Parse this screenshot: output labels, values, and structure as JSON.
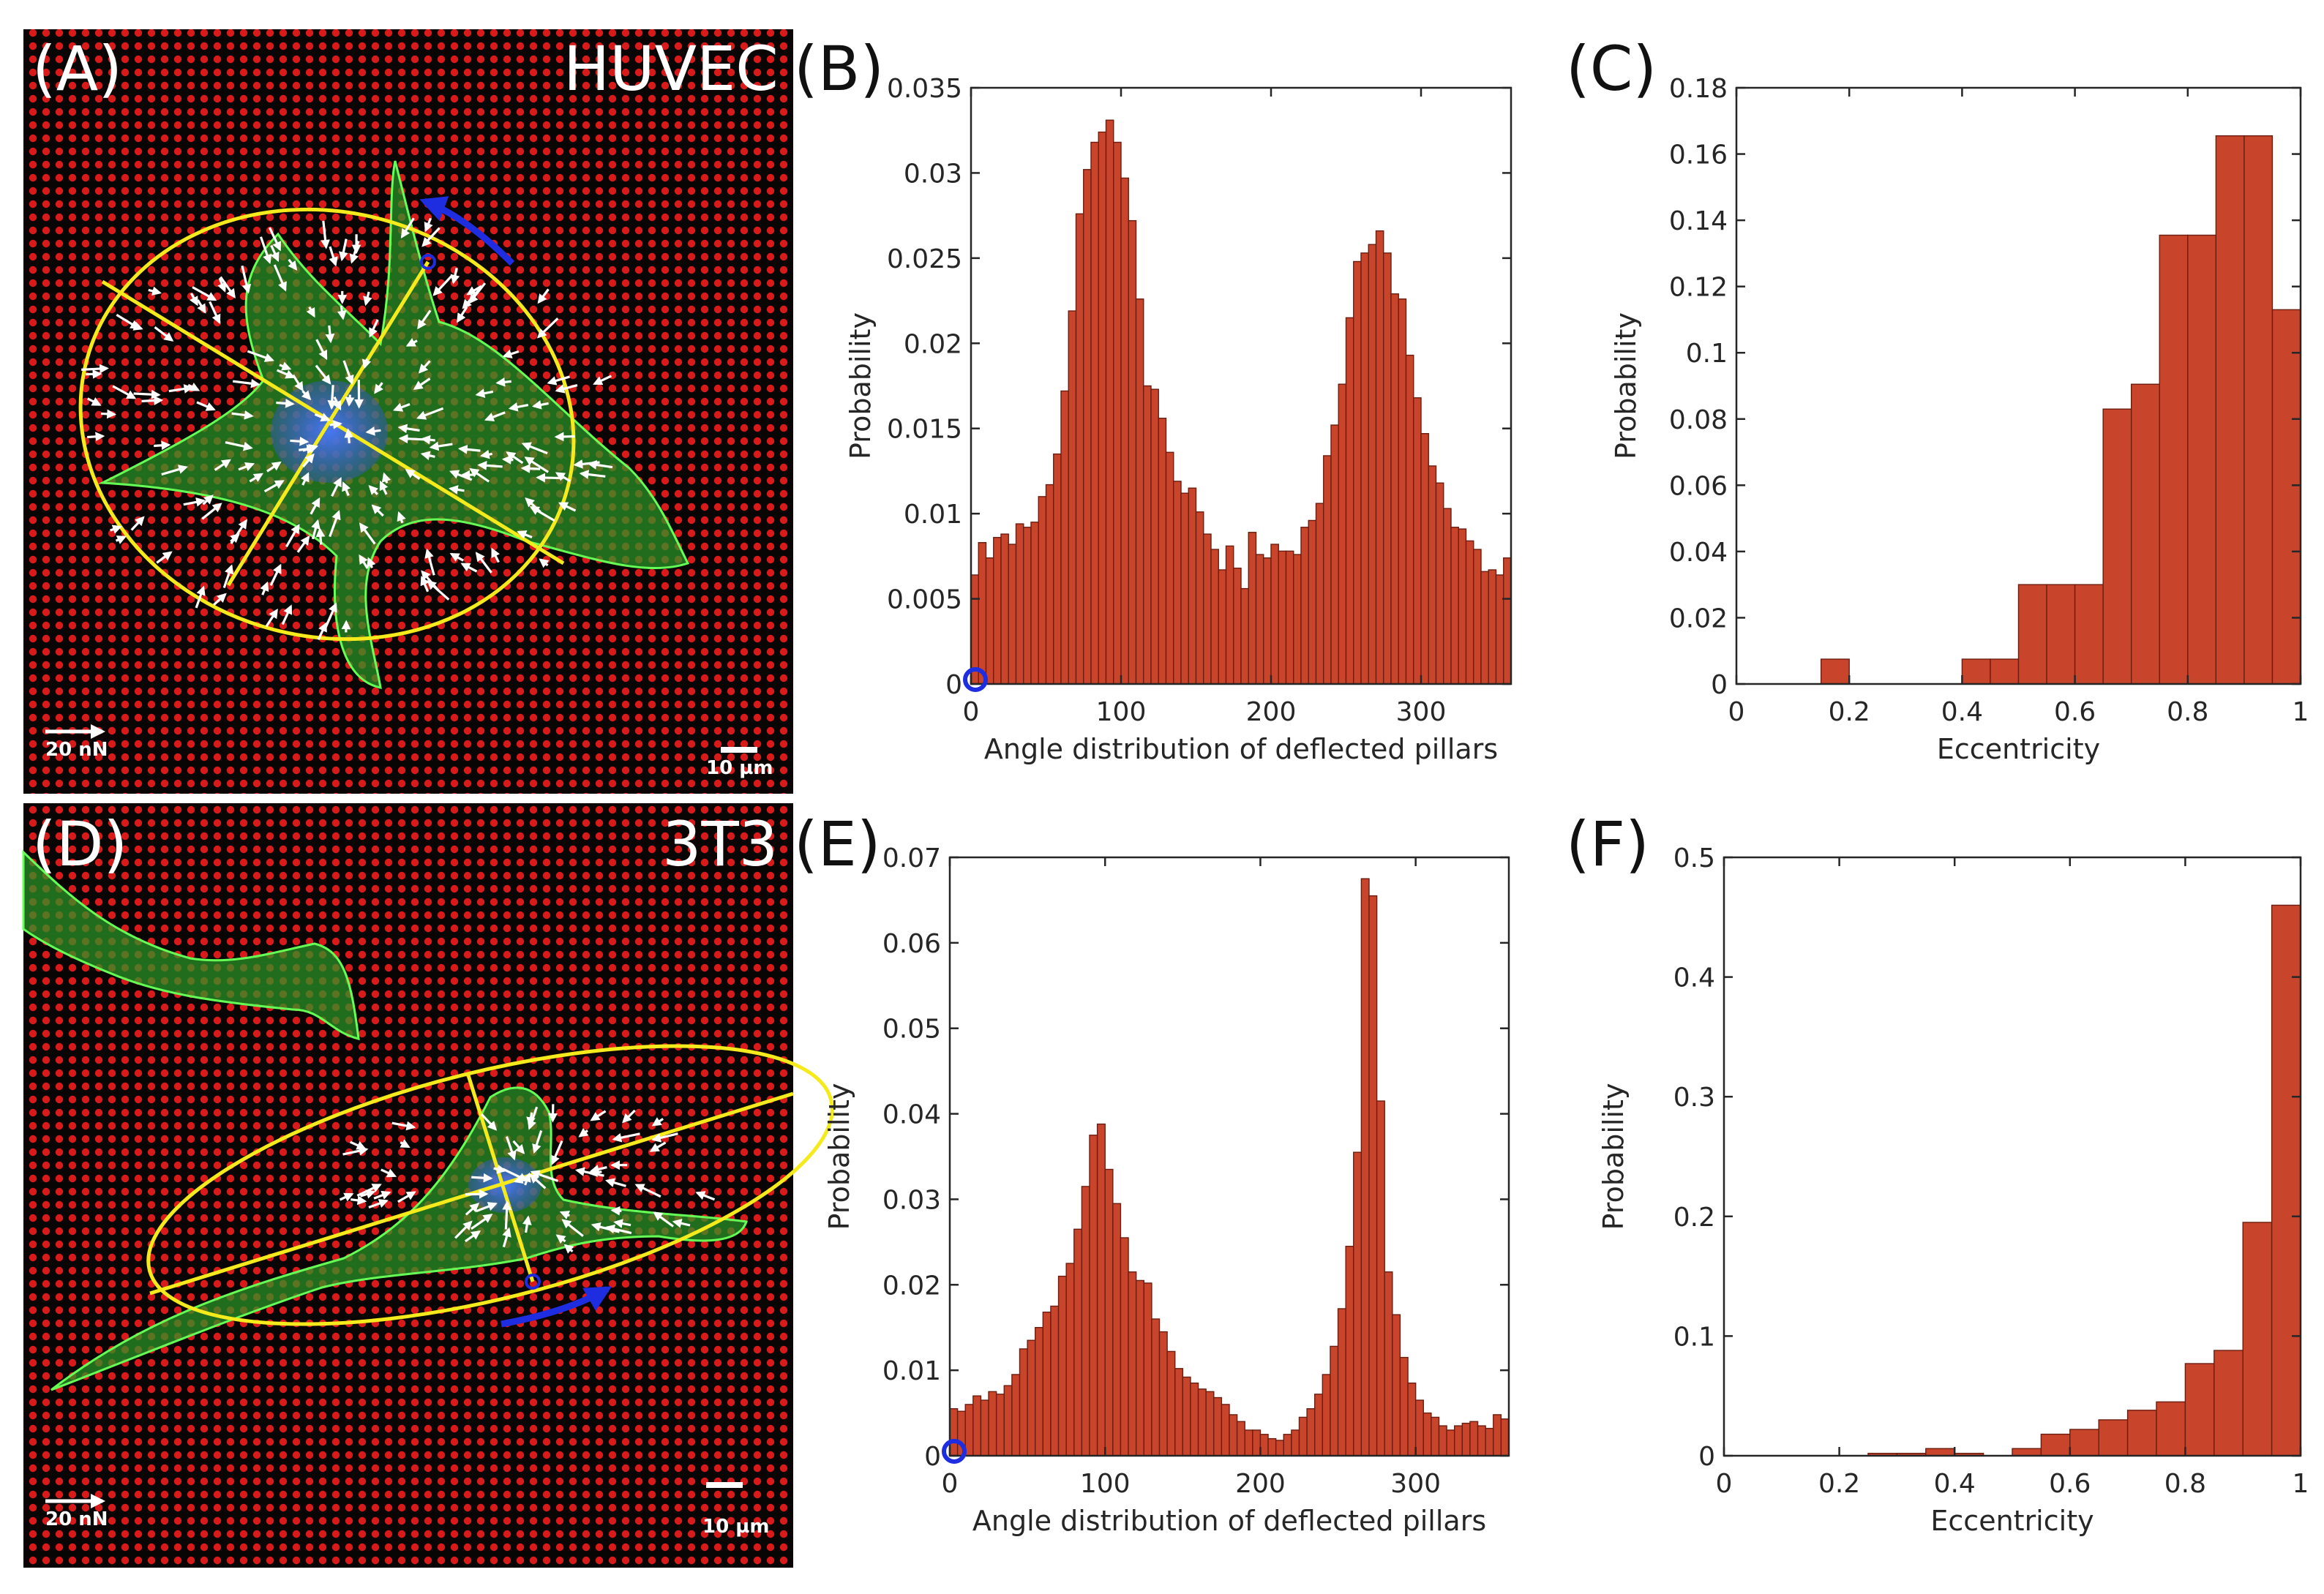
{
  "figure": {
    "panel_labels": [
      "(A)",
      "(B)",
      "(C)",
      "(D)",
      "(E)",
      "(F)"
    ],
    "images": [
      {
        "cell_type": "HUVEC",
        "force_scale": "20 nN",
        "length_scale": "10 µm"
      },
      {
        "cell_type": "3T3",
        "force_scale": "20 nN",
        "length_scale": "10 µm"
      }
    ],
    "colors": {
      "bar": "#c8452c",
      "bar_edge": "#6b1d10",
      "marker": "#1f2de0",
      "ellipse": "#f5ea1c",
      "actin": "#3ddc3a",
      "pillar": "#d81a1a",
      "vector": "#ffffff"
    }
  },
  "chart_data": [
    {
      "id": "B",
      "type": "bar",
      "title": "",
      "xlabel": "Angle distribution of deflected pillars",
      "ylabel": "Probability",
      "xlim": [
        0,
        360
      ],
      "ylim": [
        0,
        0.035
      ],
      "xticks": [
        0,
        100,
        200,
        300
      ],
      "yticks": [
        0,
        0.005,
        0.01,
        0.015,
        0.02,
        0.025,
        0.03,
        0.035
      ],
      "ytick_labels": [
        "0",
        "0.005",
        "0.01",
        "0.015",
        "0.02",
        "0.025",
        "0.03",
        "0.035"
      ],
      "bin_width": 5,
      "x": [
        2.5,
        7.5,
        12.5,
        17.5,
        22.5,
        27.5,
        32.5,
        37.5,
        42.5,
        47.5,
        52.5,
        57.5,
        62.5,
        67.5,
        72.5,
        77.5,
        82.5,
        87.5,
        92.5,
        97.5,
        102.5,
        107.5,
        112.5,
        117.5,
        122.5,
        127.5,
        132.5,
        137.5,
        142.5,
        147.5,
        152.5,
        157.5,
        162.5,
        167.5,
        172.5,
        177.5,
        182.5,
        187.5,
        192.5,
        197.5,
        202.5,
        207.5,
        212.5,
        217.5,
        222.5,
        227.5,
        232.5,
        237.5,
        242.5,
        247.5,
        252.5,
        257.5,
        262.5,
        267.5,
        272.5,
        277.5,
        282.5,
        287.5,
        292.5,
        297.5,
        302.5,
        307.5,
        312.5,
        317.5,
        322.5,
        327.5,
        332.5,
        337.5,
        342.5,
        347.5,
        352.5,
        357.5
      ],
      "values": [
        0.0064,
        0.0083,
        0.0074,
        0.0086,
        0.0088,
        0.0082,
        0.0094,
        0.0092,
        0.0095,
        0.011,
        0.0117,
        0.0135,
        0.0172,
        0.0219,
        0.0276,
        0.0302,
        0.0318,
        0.0324,
        0.0331,
        0.0318,
        0.0297,
        0.0272,
        0.0226,
        0.0175,
        0.0173,
        0.0156,
        0.0136,
        0.0119,
        0.0112,
        0.0115,
        0.0101,
        0.0088,
        0.0079,
        0.0067,
        0.0081,
        0.0068,
        0.0056,
        0.0089,
        0.0076,
        0.0074,
        0.0082,
        0.0078,
        0.0078,
        0.0076,
        0.0092,
        0.0096,
        0.0106,
        0.0134,
        0.0152,
        0.0176,
        0.0215,
        0.0248,
        0.0253,
        0.0258,
        0.0266,
        0.0253,
        0.0229,
        0.0226,
        0.0193,
        0.0168,
        0.0147,
        0.0128,
        0.0118,
        0.0103,
        0.0092,
        0.0091,
        0.0084,
        0.0079,
        0.0066,
        0.0067,
        0.0064,
        0.0074
      ],
      "annotation": "blue circle marker at origin"
    },
    {
      "id": "C",
      "type": "bar",
      "title": "",
      "xlabel": "Eccentricity",
      "ylabel": "Probability",
      "xlim": [
        0,
        1
      ],
      "ylim": [
        0,
        0.18
      ],
      "xticks": [
        0,
        0.2,
        0.4,
        0.6,
        0.8,
        1
      ],
      "xtick_labels": [
        "0",
        "0.2",
        "0.4",
        "0.6",
        "0.8",
        "1"
      ],
      "yticks": [
        0,
        0.02,
        0.04,
        0.06,
        0.08,
        0.1,
        0.12,
        0.14,
        0.16,
        0.18
      ],
      "ytick_labels": [
        "0",
        "0.02",
        "0.04",
        "0.06",
        "0.08",
        "0.1",
        "0.12",
        "0.14",
        "0.16",
        "0.18"
      ],
      "bin_width": 0.05,
      "x": [
        0.025,
        0.075,
        0.125,
        0.175,
        0.225,
        0.275,
        0.325,
        0.375,
        0.425,
        0.475,
        0.525,
        0.575,
        0.625,
        0.675,
        0.725,
        0.775,
        0.825,
        0.875,
        0.925,
        0.975
      ],
      "values": [
        0,
        0,
        0,
        0.0075,
        0,
        0,
        0,
        0,
        0.0075,
        0.0075,
        0.03,
        0.03,
        0.03,
        0.083,
        0.0905,
        0.1355,
        0.1355,
        0.1655,
        0.1655,
        0.113
      ]
    },
    {
      "id": "E",
      "type": "bar",
      "title": "",
      "xlabel": "Angle distribution of deflected pillars",
      "ylabel": "Probability",
      "xlim": [
        0,
        360
      ],
      "ylim": [
        0,
        0.07
      ],
      "xticks": [
        0,
        100,
        200,
        300
      ],
      "yticks": [
        0,
        0.01,
        0.02,
        0.03,
        0.04,
        0.05,
        0.06,
        0.07
      ],
      "ytick_labels": [
        "0",
        "0.01",
        "0.02",
        "0.03",
        "0.04",
        "0.05",
        "0.06",
        "0.07"
      ],
      "bin_width": 5,
      "x": [
        2.5,
        7.5,
        12.5,
        17.5,
        22.5,
        27.5,
        32.5,
        37.5,
        42.5,
        47.5,
        52.5,
        57.5,
        62.5,
        67.5,
        72.5,
        77.5,
        82.5,
        87.5,
        92.5,
        97.5,
        102.5,
        107.5,
        112.5,
        117.5,
        122.5,
        127.5,
        132.5,
        137.5,
        142.5,
        147.5,
        152.5,
        157.5,
        162.5,
        167.5,
        172.5,
        177.5,
        182.5,
        187.5,
        192.5,
        197.5,
        202.5,
        207.5,
        212.5,
        217.5,
        222.5,
        227.5,
        232.5,
        237.5,
        242.5,
        247.5,
        252.5,
        257.5,
        262.5,
        267.5,
        272.5,
        277.5,
        282.5,
        287.5,
        292.5,
        297.5,
        302.5,
        307.5,
        312.5,
        317.5,
        322.5,
        327.5,
        332.5,
        337.5,
        342.5,
        347.5,
        352.5,
        357.5
      ],
      "values": [
        0.0055,
        0.0052,
        0.006,
        0.007,
        0.0065,
        0.0075,
        0.0072,
        0.0082,
        0.0095,
        0.0125,
        0.0135,
        0.015,
        0.0168,
        0.0175,
        0.021,
        0.0225,
        0.0265,
        0.0315,
        0.0375,
        0.0388,
        0.0335,
        0.0295,
        0.0255,
        0.0215,
        0.0205,
        0.0202,
        0.016,
        0.0145,
        0.0122,
        0.0102,
        0.0092,
        0.0085,
        0.0078,
        0.0075,
        0.0068,
        0.006,
        0.0048,
        0.004,
        0.003,
        0.003,
        0.0025,
        0.002,
        0.0018,
        0.0025,
        0.003,
        0.0045,
        0.0055,
        0.0072,
        0.0095,
        0.0128,
        0.0172,
        0.0245,
        0.0355,
        0.0675,
        0.0655,
        0.0415,
        0.0215,
        0.0165,
        0.0115,
        0.0085,
        0.0065,
        0.005,
        0.0045,
        0.0035,
        0.003,
        0.0035,
        0.0038,
        0.004,
        0.0035,
        0.0032,
        0.0048,
        0.0043
      ],
      "annotation": "blue circle marker at origin"
    },
    {
      "id": "F",
      "type": "bar",
      "title": "",
      "xlabel": "Eccentricity",
      "ylabel": "Probability",
      "xlim": [
        0,
        1
      ],
      "ylim": [
        0,
        0.5
      ],
      "xticks": [
        0,
        0.2,
        0.4,
        0.6,
        0.8,
        1
      ],
      "xtick_labels": [
        "0",
        "0.2",
        "0.4",
        "0.6",
        "0.8",
        "1"
      ],
      "yticks": [
        0,
        0.1,
        0.2,
        0.3,
        0.4,
        0.5
      ],
      "ytick_labels": [
        "0",
        "0.1",
        "0.2",
        "0.3",
        "0.4",
        "0.5"
      ],
      "bin_width": 0.05,
      "x": [
        0.025,
        0.075,
        0.125,
        0.175,
        0.225,
        0.275,
        0.325,
        0.375,
        0.425,
        0.475,
        0.525,
        0.575,
        0.625,
        0.675,
        0.725,
        0.775,
        0.825,
        0.875,
        0.925,
        0.975
      ],
      "values": [
        0,
        0,
        0,
        0,
        0,
        0.002,
        0.002,
        0.006,
        0.002,
        0,
        0.006,
        0.018,
        0.022,
        0.03,
        0.038,
        0.045,
        0.077,
        0.088,
        0.195,
        0.46
      ]
    }
  ]
}
